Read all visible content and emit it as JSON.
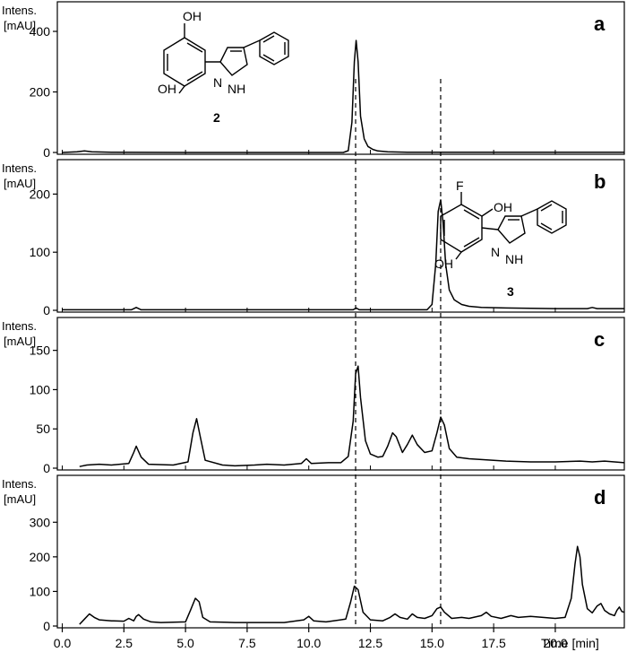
{
  "chart_data": {
    "type": "line",
    "xlabel": "Time [min]",
    "xlim": [
      -0.2,
      22.8
    ],
    "x_ticks": [
      "0.0",
      "2.5",
      "5.0",
      "7.5",
      "10.0",
      "12.5",
      "15.0",
      "17.5",
      "20.0"
    ],
    "x_tick_values": [
      0,
      2.5,
      5,
      7.5,
      10,
      12.5,
      15,
      17.5,
      20
    ],
    "reference_lines_x": [
      11.9,
      15.35
    ],
    "panels": [
      {
        "id": "a",
        "letter": "a",
        "ylabel_line1": "Intens.",
        "ylabel_line2": "[mAU]",
        "ylim": [
          0,
          480
        ],
        "y_ticks": [
          "0",
          "200",
          "400"
        ],
        "y_tick_values": [
          0,
          200,
          400
        ],
        "compound": "2",
        "atoms": {
          "oh_top": "OH",
          "oh_bottom": "OH",
          "n": "N",
          "nh": "NH"
        },
        "series": {
          "baseline": 2,
          "points": [
            [
              0.0,
              0
            ],
            [
              0.6,
              2
            ],
            [
              0.9,
              5
            ],
            [
              1.2,
              2
            ],
            [
              2.0,
              1
            ],
            [
              5.0,
              0
            ],
            [
              10.0,
              0
            ],
            [
              11.4,
              0
            ],
            [
              11.6,
              6
            ],
            [
              11.75,
              100
            ],
            [
              11.85,
              300
            ],
            [
              11.92,
              370
            ],
            [
              12.0,
              300
            ],
            [
              12.1,
              120
            ],
            [
              12.25,
              45
            ],
            [
              12.4,
              20
            ],
            [
              12.6,
              10
            ],
            [
              12.8,
              5
            ],
            [
              13.2,
              2
            ],
            [
              14.0,
              1
            ],
            [
              22.8,
              1
            ]
          ]
        }
      },
      {
        "id": "b",
        "letter": "b",
        "ylabel_line1": "Intens.",
        "ylabel_line2": "[mAU]",
        "ylim": [
          0,
          250
        ],
        "y_ticks": [
          "0",
          "100",
          "200"
        ],
        "y_tick_values": [
          0,
          100,
          200
        ],
        "compound": "3",
        "atoms": {
          "f": "F",
          "oh_top": "OH",
          "oh_bottom": "OH",
          "n": "N",
          "nh": "NH"
        },
        "series": {
          "baseline": 1,
          "points": [
            [
              0.0,
              1
            ],
            [
              2.8,
              1
            ],
            [
              3.0,
              5
            ],
            [
              3.2,
              1
            ],
            [
              11.8,
              1
            ],
            [
              11.92,
              4
            ],
            [
              12.05,
              1
            ],
            [
              14.8,
              1
            ],
            [
              15.0,
              10
            ],
            [
              15.15,
              80
            ],
            [
              15.25,
              170
            ],
            [
              15.35,
              190
            ],
            [
              15.45,
              150
            ],
            [
              15.55,
              80
            ],
            [
              15.7,
              35
            ],
            [
              15.9,
              18
            ],
            [
              16.2,
              10
            ],
            [
              16.5,
              7
            ],
            [
              17.0,
              5
            ],
            [
              18.0,
              4
            ],
            [
              20.0,
              3
            ],
            [
              21.3,
              3
            ],
            [
              21.5,
              5
            ],
            [
              21.7,
              3
            ],
            [
              22.8,
              3
            ]
          ]
        }
      },
      {
        "id": "c",
        "letter": "c",
        "ylabel_line1": "Intens.",
        "ylabel_line2": "[mAU]",
        "ylim": [
          0,
          185
        ],
        "y_ticks": [
          "0",
          "50",
          "100",
          "150"
        ],
        "y_tick_values": [
          0,
          50,
          100,
          150
        ],
        "series": {
          "baseline": 4,
          "points": [
            [
              0.7,
              2
            ],
            [
              1.0,
              4
            ],
            [
              1.5,
              5
            ],
            [
              2.0,
              4
            ],
            [
              2.7,
              6
            ],
            [
              2.9,
              20
            ],
            [
              3.0,
              28
            ],
            [
              3.2,
              14
            ],
            [
              3.5,
              5
            ],
            [
              4.5,
              4
            ],
            [
              5.1,
              8
            ],
            [
              5.3,
              45
            ],
            [
              5.45,
              63
            ],
            [
              5.6,
              40
            ],
            [
              5.8,
              10
            ],
            [
              6.5,
              4
            ],
            [
              7.0,
              3
            ],
            [
              7.8,
              4
            ],
            [
              8.3,
              5
            ],
            [
              9.0,
              4
            ],
            [
              9.7,
              6
            ],
            [
              9.9,
              12
            ],
            [
              10.1,
              6
            ],
            [
              10.8,
              7
            ],
            [
              11.3,
              7
            ],
            [
              11.6,
              15
            ],
            [
              11.8,
              60
            ],
            [
              11.9,
              120
            ],
            [
              12.0,
              130
            ],
            [
              12.1,
              90
            ],
            [
              12.3,
              35
            ],
            [
              12.5,
              18
            ],
            [
              12.8,
              14
            ],
            [
              13.0,
              15
            ],
            [
              13.2,
              28
            ],
            [
              13.4,
              45
            ],
            [
              13.55,
              40
            ],
            [
              13.8,
              20
            ],
            [
              14.0,
              30
            ],
            [
              14.2,
              42
            ],
            [
              14.4,
              30
            ],
            [
              14.7,
              20
            ],
            [
              15.0,
              22
            ],
            [
              15.2,
              45
            ],
            [
              15.35,
              65
            ],
            [
              15.5,
              55
            ],
            [
              15.7,
              25
            ],
            [
              16.0,
              14
            ],
            [
              16.5,
              12
            ],
            [
              17.0,
              11
            ],
            [
              17.5,
              10
            ],
            [
              18.0,
              9
            ],
            [
              19.0,
              8
            ],
            [
              20.0,
              8
            ],
            [
              21.0,
              9
            ],
            [
              21.5,
              8
            ],
            [
              22.0,
              9
            ],
            [
              22.8,
              7
            ]
          ]
        }
      },
      {
        "id": "d",
        "letter": "d",
        "ylabel_line1": "Intens.",
        "ylabel_line2": "[mAU]",
        "ylim": [
          0,
          420
        ],
        "y_ticks": [
          "0",
          "100",
          "200",
          "300"
        ],
        "y_tick_values": [
          0,
          100,
          200,
          300
        ],
        "series": {
          "baseline": 10,
          "points": [
            [
              0.7,
              5
            ],
            [
              0.9,
              20
            ],
            [
              1.1,
              35
            ],
            [
              1.3,
              25
            ],
            [
              1.5,
              18
            ],
            [
              2.0,
              15
            ],
            [
              2.5,
              14
            ],
            [
              2.7,
              22
            ],
            [
              2.9,
              15
            ],
            [
              3.0,
              28
            ],
            [
              3.1,
              33
            ],
            [
              3.3,
              20
            ],
            [
              3.6,
              12
            ],
            [
              4.0,
              10
            ],
            [
              5.0,
              12
            ],
            [
              5.2,
              45
            ],
            [
              5.4,
              80
            ],
            [
              5.55,
              70
            ],
            [
              5.7,
              25
            ],
            [
              6.0,
              12
            ],
            [
              7.0,
              10
            ],
            [
              8.0,
              10
            ],
            [
              9.0,
              10
            ],
            [
              9.8,
              18
            ],
            [
              10.0,
              28
            ],
            [
              10.2,
              15
            ],
            [
              10.7,
              12
            ],
            [
              11.0,
              15
            ],
            [
              11.5,
              20
            ],
            [
              11.7,
              70
            ],
            [
              11.85,
              115
            ],
            [
              12.0,
              105
            ],
            [
              12.2,
              40
            ],
            [
              12.5,
              18
            ],
            [
              13.0,
              15
            ],
            [
              13.3,
              25
            ],
            [
              13.5,
              35
            ],
            [
              13.7,
              25
            ],
            [
              14.0,
              20
            ],
            [
              14.2,
              35
            ],
            [
              14.4,
              25
            ],
            [
              14.7,
              22
            ],
            [
              15.0,
              30
            ],
            [
              15.2,
              50
            ],
            [
              15.35,
              55
            ],
            [
              15.5,
              40
            ],
            [
              15.8,
              22
            ],
            [
              16.2,
              25
            ],
            [
              16.5,
              22
            ],
            [
              17.0,
              30
            ],
            [
              17.2,
              40
            ],
            [
              17.4,
              28
            ],
            [
              17.8,
              22
            ],
            [
              18.2,
              30
            ],
            [
              18.5,
              25
            ],
            [
              19.0,
              28
            ],
            [
              19.5,
              25
            ],
            [
              20.0,
              22
            ],
            [
              20.4,
              25
            ],
            [
              20.65,
              80
            ],
            [
              20.8,
              180
            ],
            [
              20.9,
              230
            ],
            [
              21.0,
              200
            ],
            [
              21.1,
              120
            ],
            [
              21.3,
              50
            ],
            [
              21.5,
              38
            ],
            [
              21.7,
              58
            ],
            [
              21.85,
              65
            ],
            [
              22.0,
              45
            ],
            [
              22.2,
              35
            ],
            [
              22.4,
              30
            ],
            [
              22.5,
              45
            ],
            [
              22.6,
              55
            ],
            [
              22.7,
              42
            ],
            [
              22.8,
              40
            ]
          ]
        }
      }
    ]
  }
}
